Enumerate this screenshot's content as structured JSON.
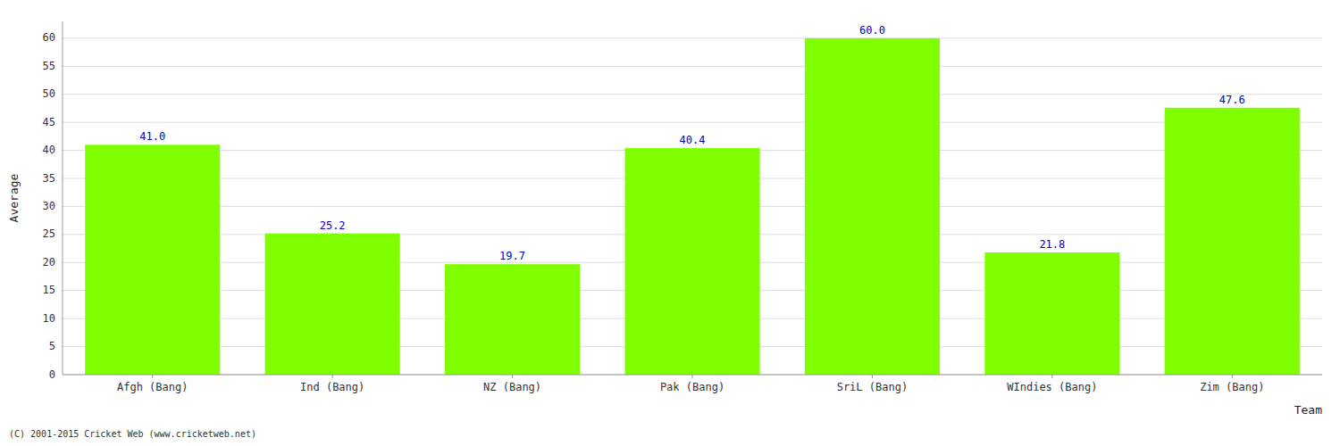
{
  "chart_data": {
    "type": "bar",
    "categories": [
      "Afgh (Bang)",
      "Ind (Bang)",
      "NZ (Bang)",
      "Pak (Bang)",
      "SriL (Bang)",
      "WIndies (Bang)",
      "Zim (Bang)"
    ],
    "values": [
      41.0,
      25.2,
      19.7,
      40.4,
      60.0,
      21.8,
      47.6
    ],
    "value_labels": [
      "41.0",
      "25.2",
      "19.7",
      "40.4",
      "60.0",
      "21.8",
      "47.6"
    ],
    "data_labels": true,
    "color": "#7FFF00",
    "x_label": "Team",
    "y_label": "Average",
    "ylim": [
      0,
      63
    ],
    "yticks": [
      0,
      5,
      10,
      15,
      20,
      25,
      30,
      35,
      40,
      45,
      50,
      55,
      60
    ],
    "grid": true,
    "annotations": [
      "(C) 2001-2015 Cricket Web (www.cricketweb.net)"
    ]
  }
}
